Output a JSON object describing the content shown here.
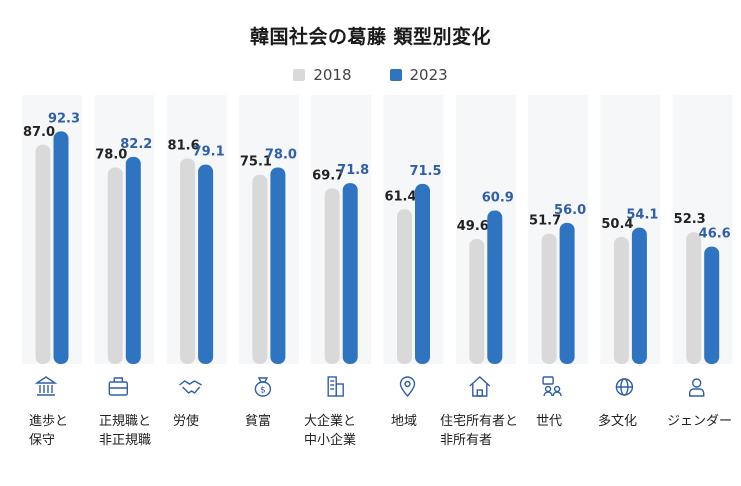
{
  "chart_data": {
    "type": "bar",
    "title": "韓国社会の葛藤 類型別変化",
    "categories": [
      "進歩と\n保守",
      "正規職と\n非正規職",
      "労使",
      "貧富",
      "大企業と\n中小企業",
      "地域",
      "住宅所有者と\n非所有者",
      "世代",
      "多文化",
      "ジェンダー"
    ],
    "series": [
      {
        "name": "2018",
        "values": [
          87.0,
          78.0,
          81.6,
          75.1,
          69.7,
          61.4,
          49.6,
          51.7,
          50.4,
          52.3
        ],
        "labels": [
          "87.0",
          "78.0",
          "81.6",
          "75.1",
          "69.7",
          "61.4",
          "49.6",
          "51.7",
          "50.4",
          "52.3"
        ]
      },
      {
        "name": "2023",
        "values": [
          92.3,
          82.2,
          79.1,
          78.0,
          71.8,
          71.5,
          60.9,
          56.0,
          54.1,
          46.6
        ],
        "labels": [
          "92.3",
          "82.2",
          "79.1",
          "78.0",
          "71.8",
          "71.5",
          "60.9",
          "56.0",
          "54.1",
          "46.6"
        ]
      }
    ],
    "legend": "top-center",
    "grid": false
  },
  "icons": [
    "bank-icon",
    "briefcase-icon",
    "handshake-icon",
    "money-bag-icon",
    "building-icon",
    "location-pin-icon",
    "house-icon",
    "generation-icon",
    "globe-icon",
    "person-icon"
  ],
  "colors": {
    "series2018": "#d9d9d9",
    "series2023": "#2f74c0",
    "label2018": "#222222",
    "label2023": "#2f5fa8",
    "icon": "#2f5fa8"
  }
}
